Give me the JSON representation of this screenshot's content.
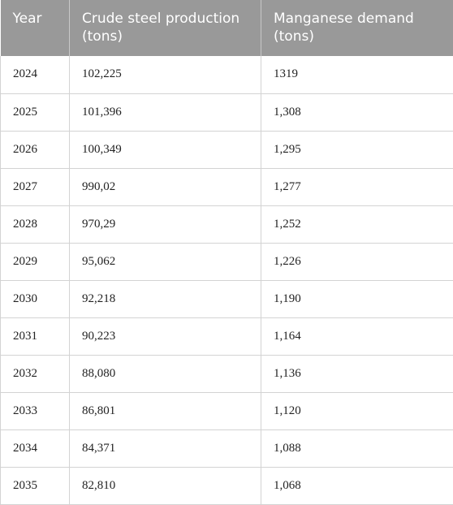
{
  "table": {
    "headers": [
      "Year",
      "Crude steel production (tons)",
      "Manganese demand (tons)"
    ],
    "rows": [
      [
        "2024",
        "102,225",
        "1319"
      ],
      [
        "2025",
        "101,396",
        "1,308"
      ],
      [
        "2026",
        "100,349",
        "1,295"
      ],
      [
        "2027",
        "990,02",
        "1,277"
      ],
      [
        "2028",
        "970,29",
        "1,252"
      ],
      [
        "2029",
        "95,062",
        "1,226"
      ],
      [
        "2030",
        "92,218",
        "1,190"
      ],
      [
        "2031",
        "90,223",
        "1,164"
      ],
      [
        "2032",
        "88,080",
        "1,136"
      ],
      [
        "2033",
        "86,801",
        "1,120"
      ],
      [
        "2034",
        "84,371",
        "1,088"
      ],
      [
        "2035",
        "82,810",
        "1,068"
      ]
    ],
    "colors": {
      "header_bg": "#999999",
      "header_text": "#ffffff",
      "border": "#d3d3d3"
    }
  }
}
